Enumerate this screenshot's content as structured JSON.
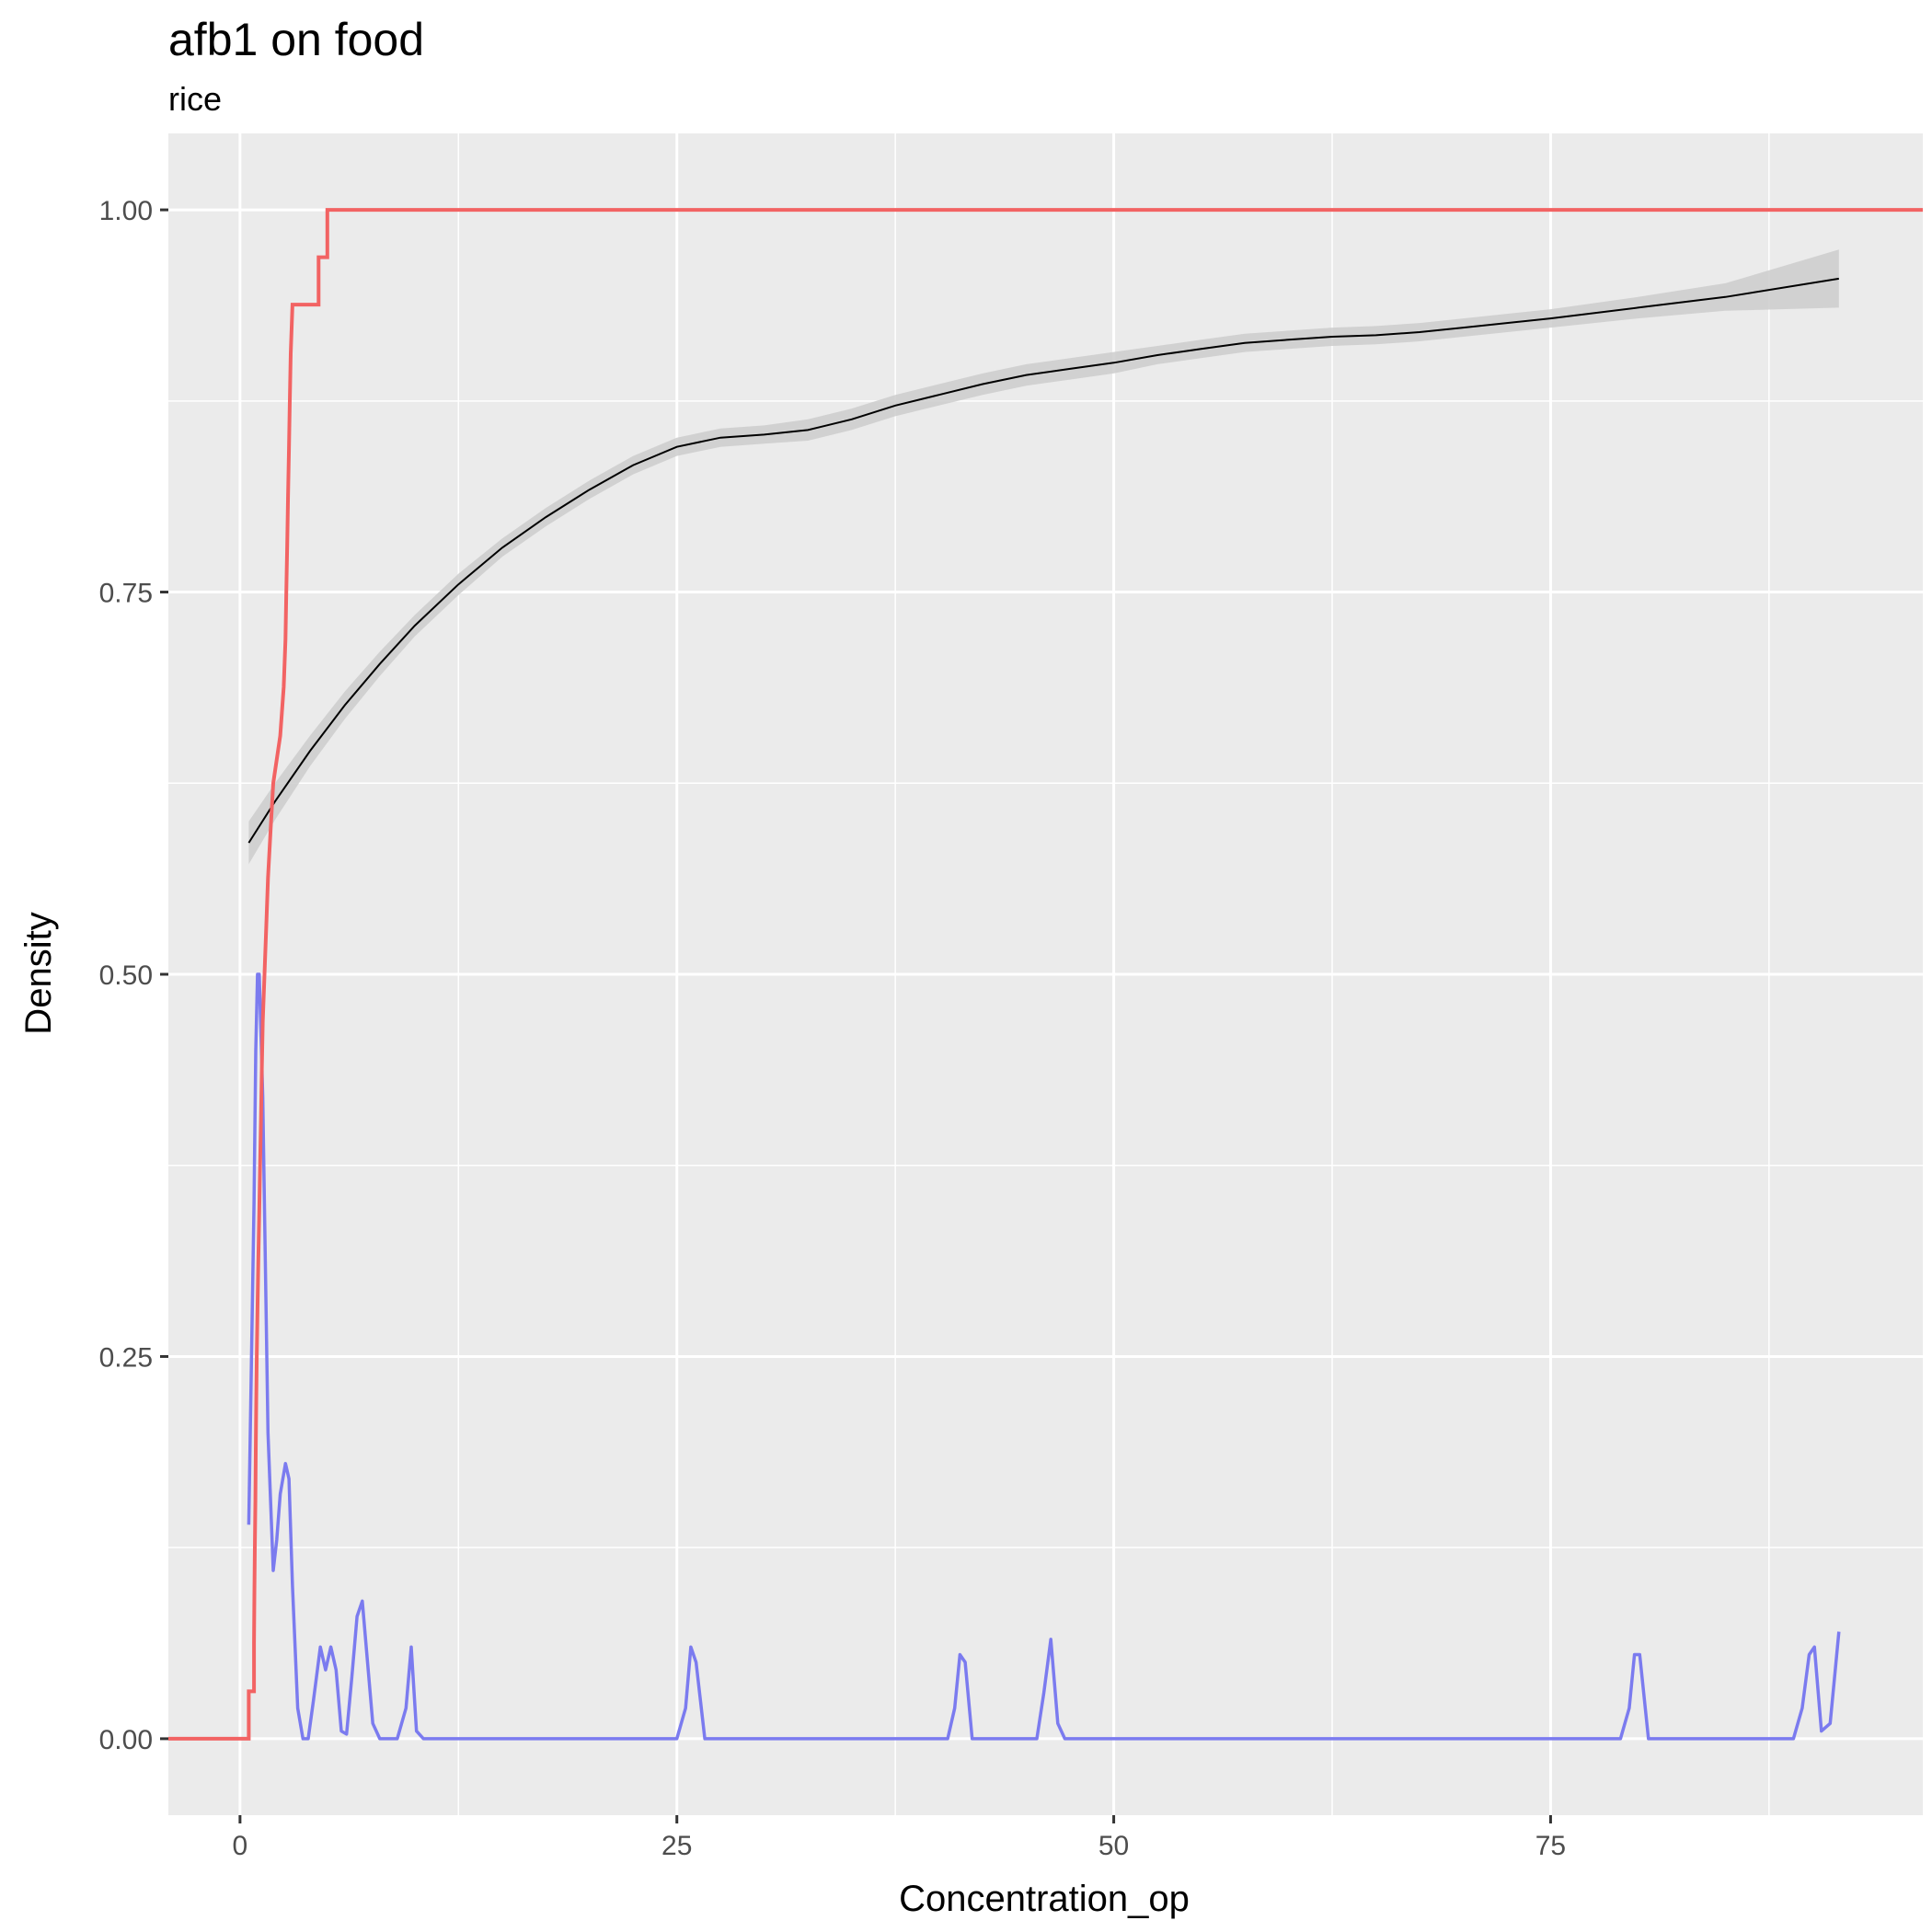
{
  "chart_data": {
    "type": "line",
    "title": "afb1 on food",
    "subtitle": "rice",
    "xlabel": "Concentration_op",
    "ylabel": "Density",
    "xlim": [
      -4.1,
      96.3
    ],
    "ylim": [
      -0.05,
      1.05
    ],
    "x_ticks": [
      0,
      25,
      50,
      75
    ],
    "x_tick_labels": [
      "0",
      "25",
      "50",
      "75"
    ],
    "y_ticks": [
      0,
      0.25,
      0.5,
      0.75,
      1
    ],
    "y_tick_labels": [
      "0.00",
      "0.25",
      "0.50",
      "0.75",
      "1.00"
    ],
    "grid": true,
    "legend": "none",
    "colors": {
      "panel": "#ebebeb",
      "grid": "#ffffff",
      "ecdf": "#f26363",
      "density": "#7b7bef",
      "smooth": "#000000",
      "ribbon": "#cccccc"
    },
    "ecdf": {
      "x": [
        -4.1,
        0.5,
        0.5,
        0.8,
        0.8,
        0.82,
        0.85,
        0.88,
        0.9,
        0.93,
        0.96,
        1.0,
        1.05,
        1.1,
        1.15,
        1.2,
        1.25,
        1.3,
        1.4,
        1.5,
        1.6,
        1.75,
        1.9,
        2.3,
        2.5,
        2.6,
        2.65,
        2.7,
        2.75,
        2.8,
        2.85,
        2.9,
        3.0,
        4.5,
        4.5,
        5.0,
        5.0,
        6.3,
        6.3,
        6.6,
        6.6,
        9.8,
        9.8,
        25.8,
        25.8,
        41.3,
        41.3,
        46.5,
        46.5,
        79.9,
        79.9,
        89.8,
        89.8,
        91.5,
        91.5,
        96.3
      ],
      "y": [
        0.0,
        0.0,
        0.031,
        0.031,
        0.063,
        0.094,
        0.125,
        0.156,
        0.188,
        0.219,
        0.25,
        0.281,
        0.313,
        0.344,
        0.375,
        0.406,
        0.438,
        0.469,
        0.5,
        0.531,
        0.563,
        0.594,
        0.625,
        0.656,
        0.688,
        0.719,
        0.75,
        0.781,
        0.813,
        0.844,
        0.875,
        0.906,
        0.938,
        0.938,
        0.969,
        0.969,
        1.0,
        1.0,
        1.0,
        1.0,
        1.0,
        1.0,
        1.0,
        1.0,
        1.0,
        1.0,
        1.0,
        1.0,
        1.0,
        1.0,
        1.0,
        1.0,
        1.0,
        1.0,
        1.0,
        1.0
      ]
    },
    "density": {
      "x": [
        0.5,
        0.8,
        0.9,
        1.0,
        1.1,
        1.3,
        1.6,
        1.9,
        2.1,
        2.3,
        2.6,
        2.8,
        3.0,
        3.3,
        3.6,
        3.9,
        4.2,
        4.6,
        4.9,
        5.2,
        5.5,
        5.8,
        6.1,
        6.4,
        6.7,
        7.0,
        7.3,
        7.6,
        8.0,
        9.0,
        9.5,
        9.8,
        10.1,
        10.5,
        25.0,
        25.5,
        25.8,
        26.1,
        26.6,
        40.5,
        40.9,
        41.2,
        41.5,
        41.9,
        45.6,
        46.0,
        46.4,
        46.8,
        47.2,
        79.0,
        79.5,
        79.8,
        80.1,
        80.6,
        88.9,
        89.4,
        89.8,
        90.1,
        90.5,
        91.0,
        91.5
      ],
      "y": [
        0.14,
        0.35,
        0.45,
        0.5,
        0.5,
        0.42,
        0.2,
        0.11,
        0.13,
        0.16,
        0.18,
        0.17,
        0.1,
        0.02,
        0.0,
        0.0,
        0.025,
        0.06,
        0.045,
        0.06,
        0.045,
        0.005,
        0.003,
        0.04,
        0.08,
        0.09,
        0.05,
        0.01,
        0.0,
        0.0,
        0.02,
        0.06,
        0.005,
        0.0,
        0.0,
        0.02,
        0.06,
        0.05,
        0.0,
        0.0,
        0.02,
        0.055,
        0.05,
        0.0,
        0.0,
        0.03,
        0.065,
        0.01,
        0.0,
        0.0,
        0.02,
        0.055,
        0.055,
        0.0,
        0.0,
        0.02,
        0.055,
        0.06,
        0.005,
        0.01,
        0.07
      ]
    },
    "smooth": {
      "x": [
        0.5,
        2.0,
        4.0,
        6.0,
        8.0,
        10.0,
        12.5,
        15.0,
        17.5,
        20.0,
        22.5,
        25.0,
        27.5,
        30.0,
        32.5,
        35.0,
        37.5,
        40.0,
        42.5,
        45.0,
        47.5,
        50.0,
        52.5,
        55.0,
        57.5,
        60.0,
        62.5,
        65.0,
        67.5,
        70.0,
        75.0,
        80.0,
        85.0,
        91.5
      ],
      "y": [
        0.586,
        0.613,
        0.646,
        0.676,
        0.703,
        0.728,
        0.755,
        0.779,
        0.799,
        0.817,
        0.833,
        0.845,
        0.851,
        0.853,
        0.856,
        0.863,
        0.872,
        0.879,
        0.886,
        0.892,
        0.896,
        0.9,
        0.905,
        0.909,
        0.913,
        0.915,
        0.917,
        0.918,
        0.92,
        0.923,
        0.929,
        0.936,
        0.943,
        0.955
      ],
      "band": [
        0.014,
        0.012,
        0.01,
        0.009,
        0.008,
        0.007,
        0.007,
        0.006,
        0.006,
        0.006,
        0.006,
        0.006,
        0.006,
        0.006,
        0.007,
        0.007,
        0.007,
        0.007,
        0.007,
        0.007,
        0.007,
        0.007,
        0.006,
        0.006,
        0.006,
        0.006,
        0.006,
        0.006,
        0.006,
        0.006,
        0.006,
        0.007,
        0.009,
        0.019
      ]
    }
  }
}
